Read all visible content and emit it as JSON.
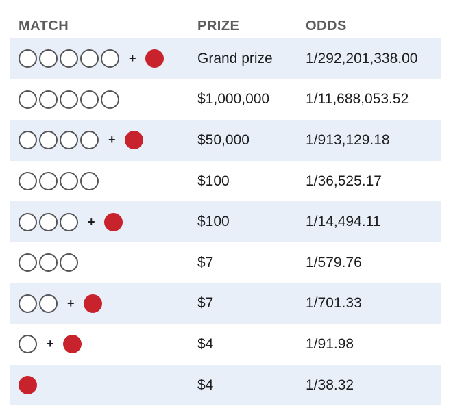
{
  "headers": {
    "match": "MATCH",
    "prize": "PRIZE",
    "odds": "ODDS"
  },
  "colors": {
    "shaded_row": "#e9eff9",
    "red_ball": "#c8232c",
    "white_ball_border": "#555558",
    "header_text": "#5c5c5f"
  },
  "plus_symbol": "+",
  "rows": [
    {
      "white_balls": 5,
      "red_ball": true,
      "prize": "Grand prize",
      "odds": "1/292,201,338.00"
    },
    {
      "white_balls": 5,
      "red_ball": false,
      "prize": "$1,000,000",
      "odds": "1/11,688,053.52"
    },
    {
      "white_balls": 4,
      "red_ball": true,
      "prize": "$50,000",
      "odds": "1/913,129.18"
    },
    {
      "white_balls": 4,
      "red_ball": false,
      "prize": "$100",
      "odds": "1/36,525.17"
    },
    {
      "white_balls": 3,
      "red_ball": true,
      "prize": "$100",
      "odds": "1/14,494.11"
    },
    {
      "white_balls": 3,
      "red_ball": false,
      "prize": "$7",
      "odds": "1/579.76"
    },
    {
      "white_balls": 2,
      "red_ball": true,
      "prize": "$7",
      "odds": "1/701.33"
    },
    {
      "white_balls": 1,
      "red_ball": true,
      "prize": "$4",
      "odds": "1/91.98"
    },
    {
      "white_balls": 0,
      "red_ball": true,
      "prize": "$4",
      "odds": "1/38.32"
    }
  ]
}
